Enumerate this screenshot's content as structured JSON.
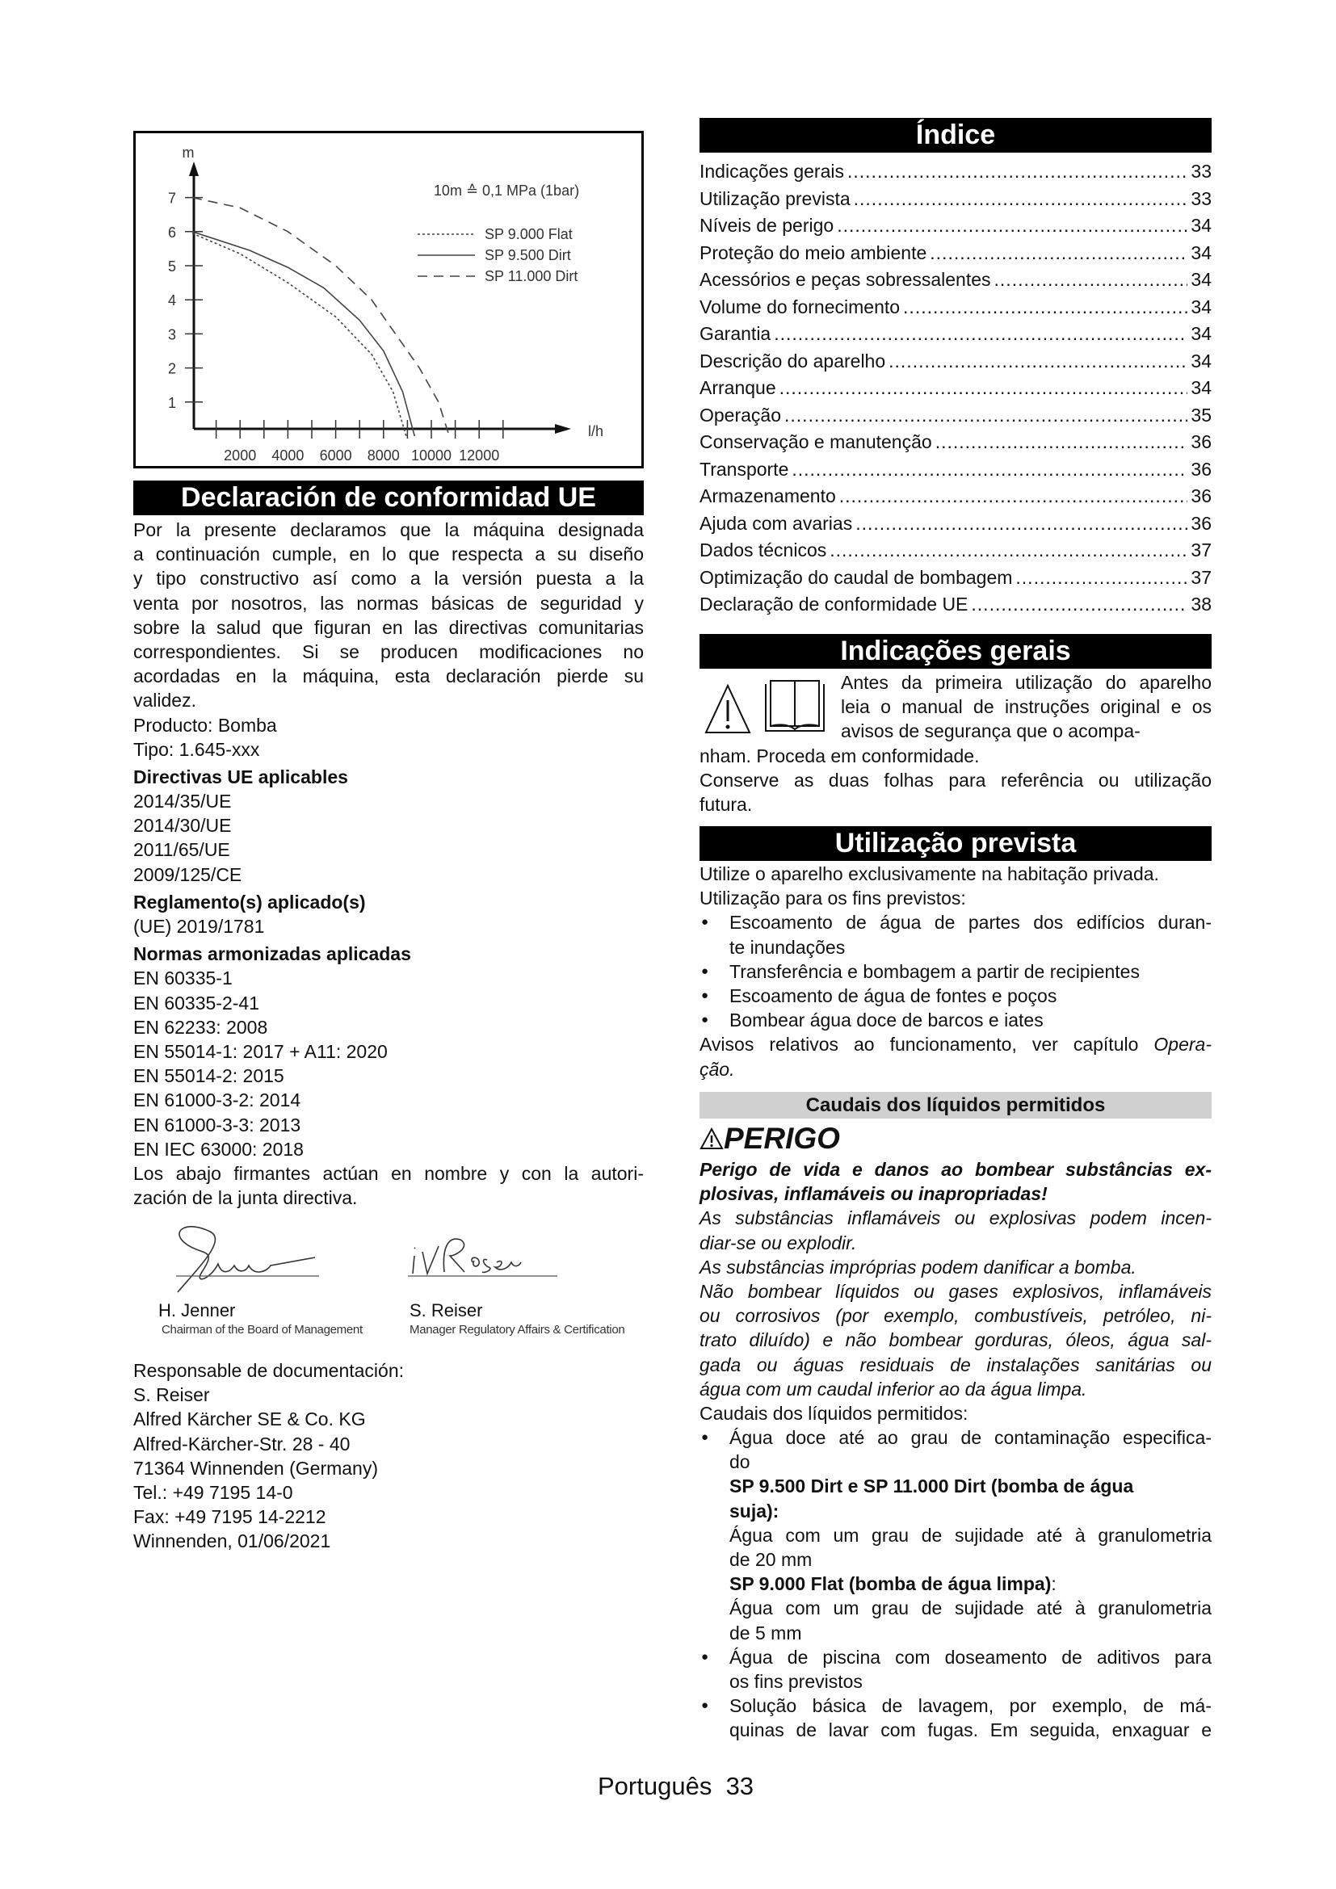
{
  "chart_data": {
    "type": "line",
    "ylabel": "m",
    "xlabel": "l/h",
    "annotation": "10m ≙ 0,1 MPa (1bar)",
    "y_ticks": [
      "1",
      "2",
      "3",
      "4",
      "5",
      "6",
      "7"
    ],
    "x_tick_labels": [
      "2000",
      "4000",
      "6000",
      "8000",
      "10000",
      "12000"
    ],
    "xlim": [
      0,
      13000
    ],
    "ylim": [
      0,
      7.5
    ],
    "grid": false,
    "legend": "top-right",
    "series": [
      {
        "name": "SP 9.000 Flat",
        "style": "dotted",
        "points": [
          [
            0,
            5.95
          ],
          [
            2000,
            5.35
          ],
          [
            4000,
            4.5
          ],
          [
            6000,
            3.5
          ],
          [
            7500,
            2.4
          ],
          [
            8400,
            1.3
          ],
          [
            8950,
            0
          ]
        ]
      },
      {
        "name": "SP 9.500 Dirt",
        "style": "solid",
        "points": [
          [
            0,
            6.0
          ],
          [
            2400,
            5.45
          ],
          [
            4000,
            4.95
          ],
          [
            5500,
            4.35
          ],
          [
            7000,
            3.4
          ],
          [
            8000,
            2.5
          ],
          [
            8800,
            1.3
          ],
          [
            9300,
            0
          ]
        ]
      },
      {
        "name": "SP 11.000 Dirt",
        "style": "dashed",
        "points": [
          [
            0,
            7.0
          ],
          [
            2000,
            6.7
          ],
          [
            4000,
            6.0
          ],
          [
            6000,
            5.0
          ],
          [
            7500,
            4.0
          ],
          [
            8500,
            3.0
          ],
          [
            9500,
            2.0
          ],
          [
            10300,
            1.0
          ],
          [
            10750,
            0
          ]
        ]
      }
    ]
  },
  "left": {
    "declaration_title": "Declaración de conformidad UE",
    "intro": [
      "Por la presente declaramos que la máquina designada",
      "a continuación cumple, en lo que respecta a su diseño",
      "y tipo constructivo así como a la versión puesta a la",
      "venta por nosotros, las normas básicas de seguridad y",
      "sobre la salud que figuran en las directivas comunitarias",
      "correspondientes. Si se producen modificaciones no",
      "acordadas en la máquina, esta declaración pierde su",
      "validez."
    ],
    "product": "Producto: Bomba",
    "type": "Tipo: 1.645-xxx",
    "directives_heading": "Directivas UE aplicables",
    "directives": [
      "2014/35/UE",
      "2014/30/UE",
      "2011/65/UE",
      "2009/125/CE"
    ],
    "regulation_heading": "Reglamento(s) aplicado(s)",
    "regulations": [
      "(UE) 2019/1781"
    ],
    "norms_heading": "Normas armonizadas aplicadas",
    "norms": [
      "EN 60335-1",
      "EN 60335-2-41",
      "EN 62233: 2008",
      "EN 55014-1: 2017 + A11: 2020",
      "EN 55014-2: 2015",
      "EN 61000-3-2: 2014",
      "EN 61000-3-3: 2013",
      "EN IEC 63000: 2018"
    ],
    "closing": [
      "Los abajo firmantes actúan en nombre y con la autori-",
      "zación de la junta directiva."
    ],
    "signatures": [
      {
        "signature": "H. Jenner",
        "name": "H. Jenner",
        "title": "Chairman of the Board of Management"
      },
      {
        "signature": "i.V. Reiser",
        "name": "S. Reiser",
        "title": "Manager Regulatory Affairs & Certification"
      }
    ],
    "responsible": [
      "Responsable de documentación:",
      "S. Reiser",
      "Alfred Kärcher SE & Co. KG",
      "Alfred-Kärcher-Str. 28 - 40",
      "71364 Winnenden (Germany)",
      "Tel.: +49 7195 14-0",
      "Fax: +49 7195 14-2212",
      "Winnenden, 01/06/2021"
    ]
  },
  "right": {
    "index_title": "Índice",
    "toc": [
      {
        "label": "Indicações gerais",
        "page": "33"
      },
      {
        "label": "Utilização prevista",
        "page": "33"
      },
      {
        "label": "Níveis de perigo",
        "page": "34"
      },
      {
        "label": "Proteção do meio ambiente",
        "page": "34"
      },
      {
        "label": "Acessórios e peças sobressalentes",
        "page": "34"
      },
      {
        "label": "Volume do fornecimento",
        "page": "34"
      },
      {
        "label": "Garantia",
        "page": "34"
      },
      {
        "label": "Descrição do aparelho",
        "page": "34"
      },
      {
        "label": "Arranque",
        "page": "34"
      },
      {
        "label": "Operação",
        "page": "35"
      },
      {
        "label": "Conservação e manutenção",
        "page": "36"
      },
      {
        "label": "Transporte",
        "page": "36"
      },
      {
        "label": "Armazenamento",
        "page": "36"
      },
      {
        "label": "Ajuda com avarias",
        "page": "36"
      },
      {
        "label": "Dados técnicos",
        "page": "37"
      },
      {
        "label": "Optimização do caudal de bombagem",
        "page": "37"
      },
      {
        "label": "Declaração de conformidade UE",
        "page": "38"
      }
    ],
    "general_title": "Indicações gerais",
    "general_icon_lines": [
      "Antes da primeira utilização do aparelho",
      "leia o manual de instruções original e os",
      "avisos de segurança que o acompa-"
    ],
    "general_cont": [
      "nham. Proceda em conformidade."
    ],
    "general_keep": [
      "Conserve as duas folhas para referência ou utilização",
      "futura."
    ],
    "use_title": "Utilização prevista",
    "use_intro": [
      "Utilize o aparelho exclusivamente na habitação privada."
    ],
    "use_purpose": "Utilização para os fins previstos:",
    "use_bullets": [
      [
        "Escoamento de água de partes dos edifícios duran-",
        "te inundações"
      ],
      [
        "Transferência e bombagem a partir de recipientes"
      ],
      [
        "Escoamento de água de fontes e poços"
      ],
      [
        "Bombear água doce de barcos e iates"
      ]
    ],
    "use_notes_text": "Avisos relativos ao funcionamento, ver capítulo ",
    "use_notes_link": "Opera-",
    "use_notes_link_cont": "ção.",
    "liquids_title": "Caudais dos líquidos permitidos",
    "danger_label": "PERIGO",
    "danger_bold": [
      "Perigo de vida e danos ao bombear substâncias ex-",
      "plosivas, inflamáveis ou inapropriadas!"
    ],
    "danger_p1": [
      "As substâncias inflamáveis ou explosivas podem incen-",
      "diar-se ou explodir."
    ],
    "danger_p2": [
      "As substâncias impróprias podem danificar a bomba."
    ],
    "danger_p3": [
      "Não bombear líquidos ou gases explosivos, inflamáveis",
      "ou corrosivos (por exemplo, combustíveis, petróleo, ni-",
      "trato diluído) e não bombear gorduras, óleos, água sal-",
      "gada ou águas residuais de instalações sanitárias ou",
      "água com um caudal inferior ao da água limpa."
    ],
    "liquids_intro": "Caudais dos líquidos permitidos:",
    "liquid_b1": [
      "Água doce até ao grau de contaminação especifica-",
      "do"
    ],
    "dirt_heading": [
      "SP 9.500 Dirt e SP 11.000 Dirt (bomba de água",
      "suja):"
    ],
    "dirt_text": [
      "Água com um grau de sujidade até à granulometria",
      "de 20 mm"
    ],
    "flat_heading": "SP 9.000 Flat (bomba de água limpa)",
    "flat_colon": ":",
    "flat_text": [
      "Água com um grau de sujidade até à granulometria",
      "de 5 mm"
    ],
    "liquid_b2": [
      "Água de piscina com doseamento de aditivos para",
      "os fins previstos"
    ],
    "liquid_b3": [
      "Solução básica de lavagem, por exemplo, de má-",
      "quinas de lavar com fugas. Em seguida, enxaguar e"
    ]
  },
  "footer": {
    "language": "Português",
    "page": "33"
  }
}
